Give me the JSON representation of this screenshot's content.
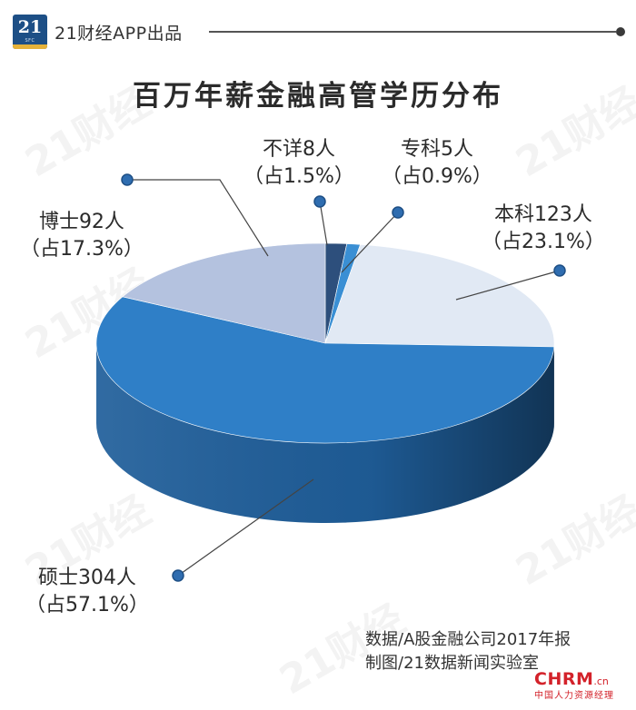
{
  "header": {
    "logo_number": "21",
    "logo_sub": "SFC",
    "brand": "21财经APP出品"
  },
  "watermark_text": "21财经",
  "chart_data": {
    "type": "pie",
    "title": "百万年薪金融高管学历分布",
    "unit": "人",
    "slices": [
      {
        "label": "不详",
        "count": 8,
        "percent": 1.5,
        "name_text": "不详8人",
        "pct_text": "（占1.5%）",
        "color": "#2d4f7c",
        "side_color": "#1f3a5e"
      },
      {
        "label": "专科",
        "count": 5,
        "percent": 0.9,
        "name_text": "专科5人",
        "pct_text": "（占0.9%）",
        "color": "#3a8fd4",
        "side_color": "#276aa3"
      },
      {
        "label": "本科",
        "count": 123,
        "percent": 23.1,
        "name_text": "本科123人",
        "pct_text": "（占23.1%）",
        "color": "#e1e9f4",
        "side_color": "#b8c6d8"
      },
      {
        "label": "硕士",
        "count": 304,
        "percent": 57.1,
        "name_text": "硕士304人",
        "pct_text": "（占57.1%）",
        "color": "#2f7fc7",
        "side_color": "#1f5e9a"
      },
      {
        "label": "博士",
        "count": 92,
        "percent": 17.3,
        "name_text": "博士92人",
        "pct_text": "（占17.3%）",
        "color": "#b4c2df",
        "side_color": "#8d9dbf"
      }
    ]
  },
  "source": {
    "line1": "数据/A股金融公司2017年报",
    "line2": "制图/21数据新闻实验室"
  },
  "footer_logo": {
    "mark": "CHRM",
    "suffix": ".cn",
    "sub": "中国人力资源经理"
  },
  "colors": {
    "dot": "#2f6db0",
    "leader": "#444444",
    "brand_blue": "#1d4f86",
    "brand_gold": "#e5b23a",
    "footer_red": "#d3222a"
  }
}
